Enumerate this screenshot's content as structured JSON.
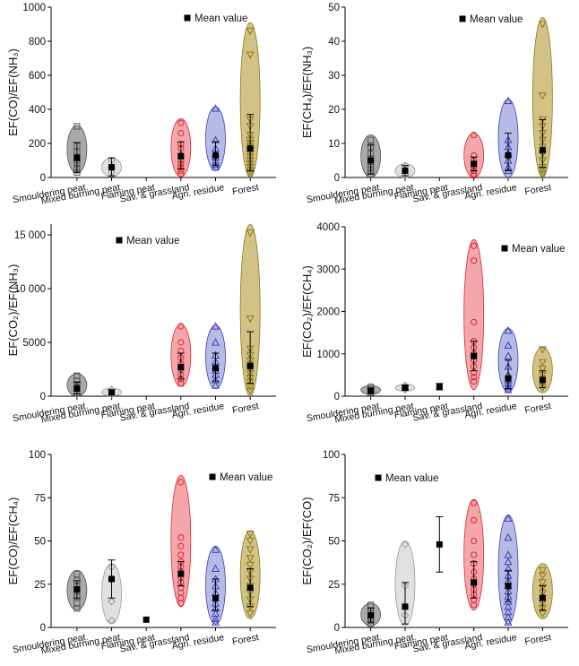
{
  "legend_label": "Mean value",
  "categories": [
    "Smouldering peat",
    "Mixed burning peat",
    "Flaming peat",
    "Sav. & grassland",
    "Agri. residue",
    "Forest"
  ],
  "group_style": [
    {
      "fill": "#8c8c8c",
      "stroke": "#555555",
      "marker": "square"
    },
    {
      "fill": "#d6d6d6",
      "stroke": "#9a9a9a",
      "marker": "diamond"
    },
    {
      "fill": "#cccccc",
      "stroke": "#999999",
      "marker": "square"
    },
    {
      "fill": "#f08a8f",
      "stroke": "#d9262f",
      "marker": "circle"
    },
    {
      "fill": "#9fa3dc",
      "stroke": "#3a43b3",
      "marker": "triangle-up"
    },
    {
      "fill": "#c4ae5c",
      "stroke": "#8b7a1c",
      "marker": "triangle-down"
    }
  ],
  "chart_data": [
    {
      "type": "scatter",
      "ylabel": "EF(CO)/EF(NH₃)",
      "ylim": [
        0,
        1000
      ],
      "yticks": [
        0,
        200,
        400,
        600,
        800,
        1000
      ],
      "ytick_labels": [
        "0",
        "200",
        "400",
        "600",
        "800",
        "1000"
      ],
      "legend": "top-center",
      "groups": [
        {
          "category": "Smouldering peat",
          "mean": 115,
          "sd_low": 30,
          "sd_high": 205,
          "ellipse": [
            25,
            305
          ],
          "points": [
            300,
            185,
            150,
            120,
            100,
            80,
            55,
            30
          ]
        },
        {
          "category": "Mixed burning peat",
          "mean": 60,
          "sd_low": 10,
          "sd_high": 115,
          "ellipse": [
            5,
            115
          ],
          "points": [
            100,
            60,
            30
          ]
        },
        {
          "category": "Flaming peat",
          "mean": null,
          "sd_low": null,
          "sd_high": null,
          "ellipse": null,
          "points": []
        },
        {
          "category": "Sav. & grassland",
          "mean": 125,
          "sd_low": 50,
          "sd_high": 210,
          "ellipse": [
            5,
            345
          ],
          "points": [
            320,
            260,
            195,
            170,
            130,
            100,
            80,
            60,
            40,
            20
          ]
        },
        {
          "category": "Agri. residue",
          "mean": 130,
          "sd_low": 70,
          "sd_high": 210,
          "ellipse": [
            40,
            415
          ],
          "points": [
            405,
            220,
            170,
            140,
            120,
            95,
            75,
            60
          ]
        },
        {
          "category": "Forest",
          "mean": 170,
          "sd_low": 40,
          "sd_high": 370,
          "ellipse": [
            0,
            910
          ],
          "points": [
            860,
            720,
            340,
            300,
            250,
            220,
            200,
            180,
            160,
            140,
            120,
            100,
            80,
            60,
            40,
            20
          ]
        }
      ]
    },
    {
      "type": "scatter",
      "ylabel": "EF(CH₄)/EF(NH₃)",
      "ylim": [
        0,
        50
      ],
      "yticks": [
        0,
        10,
        20,
        30,
        40,
        50
      ],
      "ytick_labels": [
        "0",
        "10",
        "20",
        "30",
        "40",
        "50"
      ],
      "legend": "top-center",
      "groups": [
        {
          "category": "Smouldering peat",
          "mean": 5,
          "sd_low": 1,
          "sd_high": 9.5,
          "ellipse": [
            0,
            12.5
          ],
          "points": [
            11,
            9,
            7,
            5.5,
            4,
            3,
            2,
            1
          ]
        },
        {
          "category": "Mixed burning peat",
          "mean": 2,
          "sd_low": 0.5,
          "sd_high": 3.5,
          "ellipse": [
            0,
            4
          ],
          "points": [
            3.5,
            2,
            1
          ]
        },
        {
          "category": "Flaming peat",
          "mean": null,
          "sd_low": null,
          "sd_high": null,
          "ellipse": null,
          "points": []
        },
        {
          "category": "Sav. & grassland",
          "mean": 4,
          "sd_low": 2,
          "sd_high": 6,
          "ellipse": [
            0,
            13
          ],
          "points": [
            12.5,
            6.5,
            5,
            4,
            3,
            2,
            1,
            0.5
          ]
        },
        {
          "category": "Agri. residue",
          "mean": 6.5,
          "sd_low": 2,
          "sd_high": 13,
          "ellipse": [
            0,
            23
          ],
          "points": [
            22.5,
            11,
            9,
            7,
            5,
            3,
            2
          ]
        },
        {
          "category": "Forest",
          "mean": 8,
          "sd_low": 3,
          "sd_high": 17,
          "ellipse": [
            0,
            47
          ],
          "points": [
            45,
            24,
            17,
            15,
            13,
            11,
            9,
            7,
            5,
            3,
            2,
            1
          ]
        }
      ]
    },
    {
      "type": "scatter",
      "ylabel": "EF(CO₂)/EF(NH₃)",
      "ylim": [
        0,
        16000
      ],
      "yticks": [
        0,
        5000,
        10000,
        15000
      ],
      "ytick_labels": [
        "0",
        "5000",
        "10 000",
        "15 000"
      ],
      "legend": "top-left",
      "groups": [
        {
          "category": "Smouldering peat",
          "mean": 700,
          "sd_low": 200,
          "sd_high": 1300,
          "ellipse": [
            0,
            2100
          ],
          "points": [
            1900,
            1400,
            1100,
            800,
            500,
            300
          ]
        },
        {
          "category": "Mixed burning peat",
          "mean": 350,
          "sd_low": 100,
          "sd_high": 600,
          "ellipse": [
            0,
            750
          ],
          "points": [
            600,
            350,
            150
          ]
        },
        {
          "category": "Flaming peat",
          "mean": null,
          "sd_low": null,
          "sd_high": null,
          "ellipse": null,
          "points": []
        },
        {
          "category": "Sav. & grassland",
          "mean": 2700,
          "sd_low": 1600,
          "sd_high": 4000,
          "ellipse": [
            900,
            6700
          ],
          "points": [
            6500,
            5000,
            4200,
            3600,
            3000,
            2500,
            2000,
            1600,
            1200
          ]
        },
        {
          "category": "Agri. residue",
          "mean": 2600,
          "sd_low": 1400,
          "sd_high": 4000,
          "ellipse": [
            700,
            6600
          ],
          "points": [
            6500,
            5000,
            3800,
            3200,
            2800,
            2400,
            2000,
            1500,
            1000
          ]
        },
        {
          "category": "Forest",
          "mean": 2800,
          "sd_low": 1200,
          "sd_high": 6000,
          "ellipse": [
            0,
            16000
          ],
          "points": [
            15200,
            7200,
            4400,
            3800,
            3300,
            2900,
            2500,
            2100,
            1700,
            1300,
            900,
            500
          ]
        }
      ]
    },
    {
      "type": "scatter",
      "ylabel": "EF(CO₂)/EF(CH₄)",
      "ylim": [
        0,
        4000
      ],
      "yticks": [
        0,
        1000,
        2000,
        3000,
        4000
      ],
      "ytick_labels": [
        "0",
        "1000",
        "2000",
        "3000",
        "4000"
      ],
      "legend": "top-right",
      "groups": [
        {
          "category": "Smouldering peat",
          "mean": 130,
          "sd_low": 80,
          "sd_high": 190,
          "ellipse": [
            40,
            250
          ],
          "points": [
            220,
            180,
            150,
            120,
            90,
            60
          ]
        },
        {
          "category": "Mixed burning peat",
          "mean": 200,
          "sd_low": 150,
          "sd_high": 250,
          "ellipse": [
            120,
            280
          ],
          "points": [
            250,
            200,
            160
          ]
        },
        {
          "category": "Flaming peat",
          "mean": 230,
          "sd_low": 150,
          "sd_high": 300,
          "ellipse": null,
          "points": []
        },
        {
          "category": "Sav. & grassland",
          "mean": 950,
          "sd_low": 600,
          "sd_high": 1300,
          "ellipse": [
            150,
            3700
          ],
          "points": [
            3550,
            3200,
            1750,
            1300,
            1150,
            1000,
            850,
            700,
            550,
            450,
            350
          ]
        },
        {
          "category": "Agri. residue",
          "mean": 420,
          "sd_low": 180,
          "sd_high": 850,
          "ellipse": [
            100,
            1600
          ],
          "points": [
            1550,
            1200,
            950,
            700,
            500,
            380,
            300,
            220,
            150
          ]
        },
        {
          "category": "Forest",
          "mean": 380,
          "sd_low": 200,
          "sd_high": 600,
          "ellipse": [
            80,
            1150
          ],
          "points": [
            1100,
            800,
            650,
            500,
            400,
            300,
            200
          ]
        }
      ]
    },
    {
      "type": "scatter",
      "ylabel": "EF(CO)/EF(CH₄)",
      "ylim": [
        0,
        100
      ],
      "yticks": [
        0,
        25,
        50,
        75,
        100
      ],
      "ytick_labels": [
        "0",
        "25",
        "50",
        "75",
        "100"
      ],
      "legend": "top-right",
      "groups": [
        {
          "category": "Smouldering peat",
          "mean": 22,
          "sd_low": 17,
          "sd_high": 27,
          "ellipse": [
            10,
            33
          ],
          "points": [
            31,
            27,
            24,
            21,
            18,
            14,
            11
          ]
        },
        {
          "category": "Mixed burning peat",
          "mean": 28,
          "sd_low": 17,
          "sd_high": 39,
          "ellipse": [
            2,
            37
          ],
          "points": [
            35,
            28,
            15,
            4
          ]
        },
        {
          "category": "Flaming peat",
          "mean": 4.5,
          "sd_low": null,
          "sd_high": null,
          "ellipse": null,
          "points": []
        },
        {
          "category": "Sav. & grassland",
          "mean": 31,
          "sd_low": 24,
          "sd_high": 38,
          "ellipse": [
            12,
            88
          ],
          "points": [
            84,
            52,
            47,
            42,
            38,
            35,
            32,
            29,
            26,
            23,
            20,
            17,
            14
          ]
        },
        {
          "category": "Agri. residue",
          "mean": 17,
          "sd_low": 10,
          "sd_high": 28,
          "ellipse": [
            2,
            47
          ],
          "points": [
            45,
            34,
            28,
            24,
            20,
            17,
            14,
            11,
            8,
            5,
            3
          ]
        },
        {
          "category": "Forest",
          "mean": 23,
          "sd_low": 12,
          "sd_high": 34,
          "ellipse": [
            5,
            56
          ],
          "points": [
            54,
            50,
            45,
            40,
            36,
            32,
            28,
            24,
            20,
            16,
            12,
            8
          ]
        }
      ]
    },
    {
      "type": "scatter",
      "ylabel": "EF(CO₂)/EF(CO)",
      "ylim": [
        0,
        100
      ],
      "yticks": [
        0,
        25,
        50,
        75,
        100
      ],
      "ytick_labels": [
        "0",
        "25",
        "50",
        "75",
        "100"
      ],
      "legend": "top-left",
      "groups": [
        {
          "category": "Smouldering peat",
          "mean": 7,
          "sd_low": 3,
          "sd_high": 11,
          "ellipse": [
            1,
            14
          ],
          "points": [
            13,
            10,
            8,
            6,
            4,
            2
          ]
        },
        {
          "category": "Mixed burning peat",
          "mean": 12,
          "sd_low": 2,
          "sd_high": 26,
          "ellipse": [
            1,
            50
          ],
          "points": [
            48,
            24,
            7
          ]
        },
        {
          "category": "Flaming peat",
          "mean": 48,
          "sd_low": 32,
          "sd_high": 64,
          "ellipse": null,
          "points": []
        },
        {
          "category": "Sav. & grassland",
          "mean": 26,
          "sd_low": 17,
          "sd_high": 38,
          "ellipse": [
            10,
            74
          ],
          "points": [
            72,
            62,
            50,
            42,
            37,
            32,
            28,
            25,
            22,
            19,
            16,
            13
          ]
        },
        {
          "category": "Agri. residue",
          "mean": 24,
          "sd_low": 15,
          "sd_high": 33,
          "ellipse": [
            2,
            65
          ],
          "points": [
            63,
            52,
            42,
            38,
            34,
            30,
            27,
            24,
            21,
            18,
            15,
            12,
            9,
            6,
            3
          ]
        },
        {
          "category": "Forest",
          "mean": 17,
          "sd_low": 10,
          "sd_high": 24,
          "ellipse": [
            5,
            37
          ],
          "points": [
            33,
            30,
            26,
            23,
            20,
            17,
            14,
            11,
            8
          ]
        }
      ]
    }
  ]
}
